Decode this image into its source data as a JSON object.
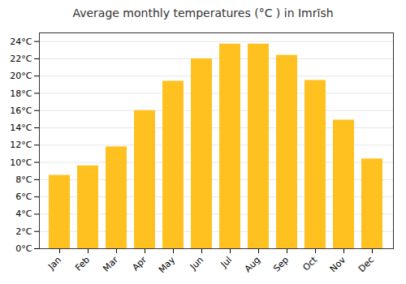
{
  "chart_data": {
    "type": "bar",
    "title": "Average monthly temperatures (°C ) in Imrīsh",
    "categories": [
      "Jan",
      "Feb",
      "Mar",
      "Apr",
      "May",
      "Jun",
      "Jul",
      "Aug",
      "Sep",
      "Oct",
      "Nov",
      "Dec"
    ],
    "values": [
      8.5,
      9.6,
      11.8,
      16.0,
      19.4,
      22.0,
      23.7,
      23.7,
      22.4,
      19.5,
      14.9,
      10.4
    ],
    "color": "#FFC120",
    "ylim": [
      0,
      25
    ],
    "yticks": [
      {
        "value": 0,
        "label": "0°C"
      },
      {
        "value": 2,
        "label": "2°C"
      },
      {
        "value": 4,
        "label": "4°C"
      },
      {
        "value": 6,
        "label": "6°C"
      },
      {
        "value": 8,
        "label": "8°C"
      },
      {
        "value": 10,
        "label": "10°C"
      },
      {
        "value": 12,
        "label": "12°C"
      },
      {
        "value": 14,
        "label": "14°C"
      },
      {
        "value": 16,
        "label": "16°C"
      },
      {
        "value": 18,
        "label": "18°C"
      },
      {
        "value": 20,
        "label": "20°C"
      },
      {
        "value": 22,
        "label": "22°C"
      },
      {
        "value": 24,
        "label": "24°C"
      }
    ],
    "grid": true
  }
}
